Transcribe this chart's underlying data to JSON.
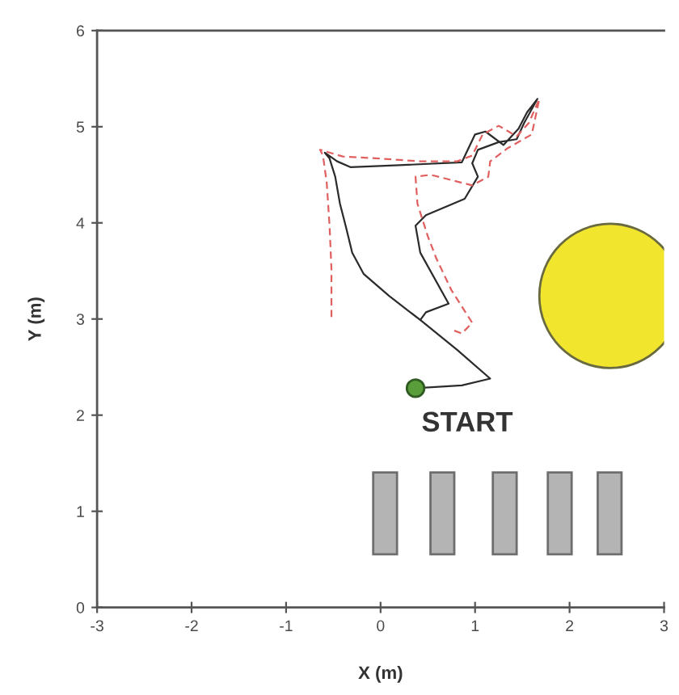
{
  "chart_data": {
    "type": "line",
    "xlabel": "X (m)",
    "ylabel": "Y (m)",
    "xlim": [
      -3,
      3
    ],
    "ylim": [
      0,
      6
    ],
    "xticks": [
      -3,
      -2,
      -1,
      0,
      1,
      2,
      3
    ],
    "yticks": [
      0,
      1,
      2,
      3,
      4,
      5,
      6
    ],
    "series": [
      {
        "color": "#2b2b2b",
        "line_style": "solid",
        "x": [
          0.37,
          0.86,
          1.16,
          0.81,
          0.42,
          0.09,
          -0.18,
          -0.3,
          -0.37,
          -0.43,
          -0.48,
          -0.54,
          -0.59,
          -0.46,
          -0.32,
          0.2,
          0.86,
          1.0,
          1.11,
          1.3,
          1.46,
          1.55,
          1.66,
          1.52,
          1.44,
          1.25,
          1.03,
          0.97,
          1.03,
          0.89,
          0.48,
          0.37,
          0.42,
          0.72,
          0.48,
          0.42
        ],
        "values": [
          2.28,
          2.31,
          2.38,
          2.68,
          2.99,
          3.24,
          3.47,
          3.69,
          3.97,
          4.2,
          4.48,
          4.67,
          4.73,
          4.64,
          4.58,
          4.6,
          4.63,
          4.92,
          4.95,
          4.81,
          4.98,
          5.15,
          5.29,
          5.04,
          4.87,
          4.84,
          4.76,
          4.62,
          4.48,
          4.25,
          4.08,
          3.97,
          3.69,
          3.16,
          3.07,
          2.99
        ]
      },
      {
        "color": "#e06060",
        "line_style": "dashed",
        "x": [
          -0.52,
          -0.52,
          -0.54,
          -0.57,
          -0.61,
          -0.64,
          -0.4,
          -0.02,
          0.42,
          0.81,
          0.97,
          1.08,
          1.25,
          1.44,
          1.57,
          1.68,
          1.6,
          1.35,
          1.16,
          1.14,
          0.97,
          0.53,
          0.37,
          0.39,
          0.5,
          0.59,
          0.75,
          0.97,
          0.86,
          0.75
        ],
        "values": [
          3.02,
          3.52,
          3.97,
          4.42,
          4.7,
          4.76,
          4.69,
          4.67,
          4.64,
          4.64,
          4.7,
          4.92,
          5.01,
          4.9,
          5.04,
          5.29,
          4.92,
          4.78,
          4.64,
          4.48,
          4.39,
          4.5,
          4.48,
          4.2,
          3.86,
          3.63,
          3.3,
          2.96,
          2.85,
          2.89
        ]
      },
      {
        "type": "scatter",
        "color": "#5a9e3c",
        "marker": "circle",
        "x": [
          0.37
        ],
        "values": [
          2.28
        ]
      }
    ],
    "annotations": [
      {
        "text": "START",
        "x": 0.37,
        "y": 2.28
      }
    ]
  }
}
